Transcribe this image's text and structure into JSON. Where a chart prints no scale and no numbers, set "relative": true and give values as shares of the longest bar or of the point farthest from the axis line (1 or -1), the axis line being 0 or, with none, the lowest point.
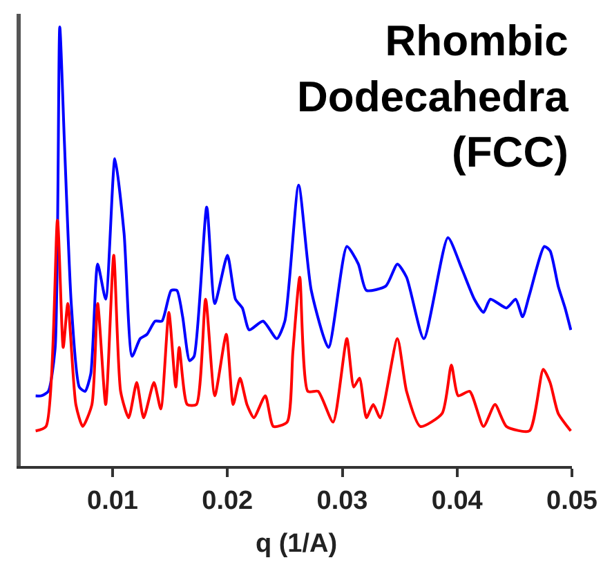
{
  "chart_data": {
    "type": "line",
    "title": "Rhombic\nDodecahedra\n(FCC)",
    "xlabel": "q (1/A)",
    "relative": true,
    "xlim": [
      0.002,
      0.05
    ],
    "xticks": [
      0.01,
      0.02,
      0.03,
      0.04,
      0.05
    ],
    "legend": false,
    "marker": "none",
    "line_style": "solid",
    "series": [
      {
        "color": "#0000ff",
        "x": [
          0.0033,
          0.0038,
          0.0044,
          0.005,
          0.0054,
          0.0058,
          0.0064,
          0.0071,
          0.0076,
          0.0081,
          0.0087,
          0.0094,
          0.0102,
          0.011,
          0.0117,
          0.0124,
          0.013,
          0.0137,
          0.0143,
          0.0151,
          0.0156,
          0.0161,
          0.0167,
          0.0171,
          0.0182,
          0.0189,
          0.02,
          0.0207,
          0.0213,
          0.0219,
          0.0231,
          0.0243,
          0.025,
          0.0262,
          0.0273,
          0.0288,
          0.0304,
          0.0314,
          0.0321,
          0.0338,
          0.0348,
          0.0356,
          0.0371,
          0.0392,
          0.0404,
          0.0415,
          0.0423,
          0.0429,
          0.0443,
          0.0451,
          0.0457,
          0.0463,
          0.0476,
          0.0481,
          0.0488,
          0.0494,
          0.0499
        ],
        "values": [
          0.16,
          0.16,
          0.17,
          0.27,
          1.0,
          0.74,
          0.37,
          0.18,
          0.17,
          0.21,
          0.46,
          0.38,
          0.7,
          0.53,
          0.25,
          0.29,
          0.3,
          0.33,
          0.33,
          0.4,
          0.4,
          0.34,
          0.24,
          0.25,
          0.59,
          0.37,
          0.48,
          0.38,
          0.36,
          0.31,
          0.33,
          0.29,
          0.33,
          0.64,
          0.4,
          0.27,
          0.5,
          0.46,
          0.4,
          0.41,
          0.46,
          0.43,
          0.29,
          0.52,
          0.45,
          0.38,
          0.35,
          0.38,
          0.36,
          0.38,
          0.34,
          0.39,
          0.5,
          0.49,
          0.41,
          0.36,
          0.31
        ]
      },
      {
        "color": "#ff0000",
        "x": [
          0.0033,
          0.0042,
          0.0052,
          0.0057,
          0.0061,
          0.0068,
          0.0074,
          0.0082,
          0.0087,
          0.0094,
          0.0101,
          0.0107,
          0.0114,
          0.0121,
          0.0127,
          0.0136,
          0.0142,
          0.0149,
          0.0155,
          0.0158,
          0.0165,
          0.0173,
          0.0181,
          0.0189,
          0.0199,
          0.0205,
          0.0211,
          0.0217,
          0.0223,
          0.0233,
          0.024,
          0.0252,
          0.0257,
          0.0263,
          0.027,
          0.0279,
          0.0292,
          0.0304,
          0.031,
          0.0315,
          0.0321,
          0.0327,
          0.0333,
          0.0348,
          0.0356,
          0.0368,
          0.0387,
          0.0395,
          0.0401,
          0.0411,
          0.0423,
          0.0433,
          0.0443,
          0.0463,
          0.0475,
          0.0481,
          0.0488,
          0.0499
        ],
        "values": [
          0.08,
          0.09,
          0.56,
          0.27,
          0.37,
          0.14,
          0.09,
          0.14,
          0.37,
          0.14,
          0.48,
          0.17,
          0.11,
          0.19,
          0.11,
          0.19,
          0.13,
          0.35,
          0.18,
          0.27,
          0.14,
          0.14,
          0.38,
          0.16,
          0.3,
          0.14,
          0.2,
          0.14,
          0.11,
          0.16,
          0.09,
          0.1,
          0.26,
          0.43,
          0.17,
          0.17,
          0.1,
          0.29,
          0.18,
          0.2,
          0.11,
          0.14,
          0.11,
          0.29,
          0.17,
          0.09,
          0.12,
          0.23,
          0.16,
          0.17,
          0.09,
          0.14,
          0.09,
          0.08,
          0.22,
          0.19,
          0.12,
          0.08
        ]
      }
    ]
  }
}
